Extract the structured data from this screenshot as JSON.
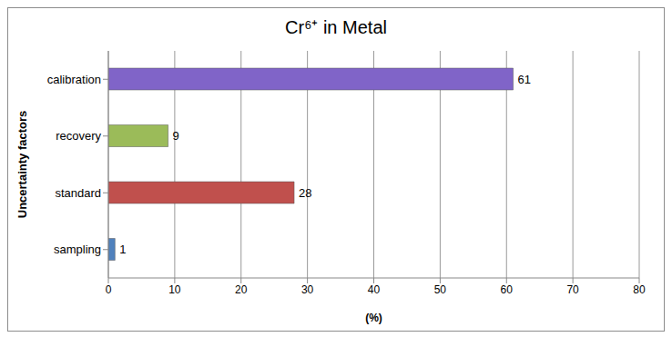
{
  "chart_data": {
    "type": "bar",
    "title": "Cr⁶⁺ in Metal",
    "orientation": "horizontal",
    "x_label": "(%)",
    "y_label": "Uncertainty factors",
    "categories": [
      "calibration",
      "recovery",
      "standard",
      "sampling"
    ],
    "values": [
      61,
      9,
      28,
      1
    ],
    "colors": [
      "#8064c8",
      "#9bbb59",
      "#c0504d",
      "#4f81bd"
    ],
    "xlim": [
      0,
      80
    ],
    "xticks": [
      0,
      10,
      20,
      30,
      40,
      50,
      60,
      70,
      80
    ],
    "grid": true,
    "data_labels": true
  }
}
